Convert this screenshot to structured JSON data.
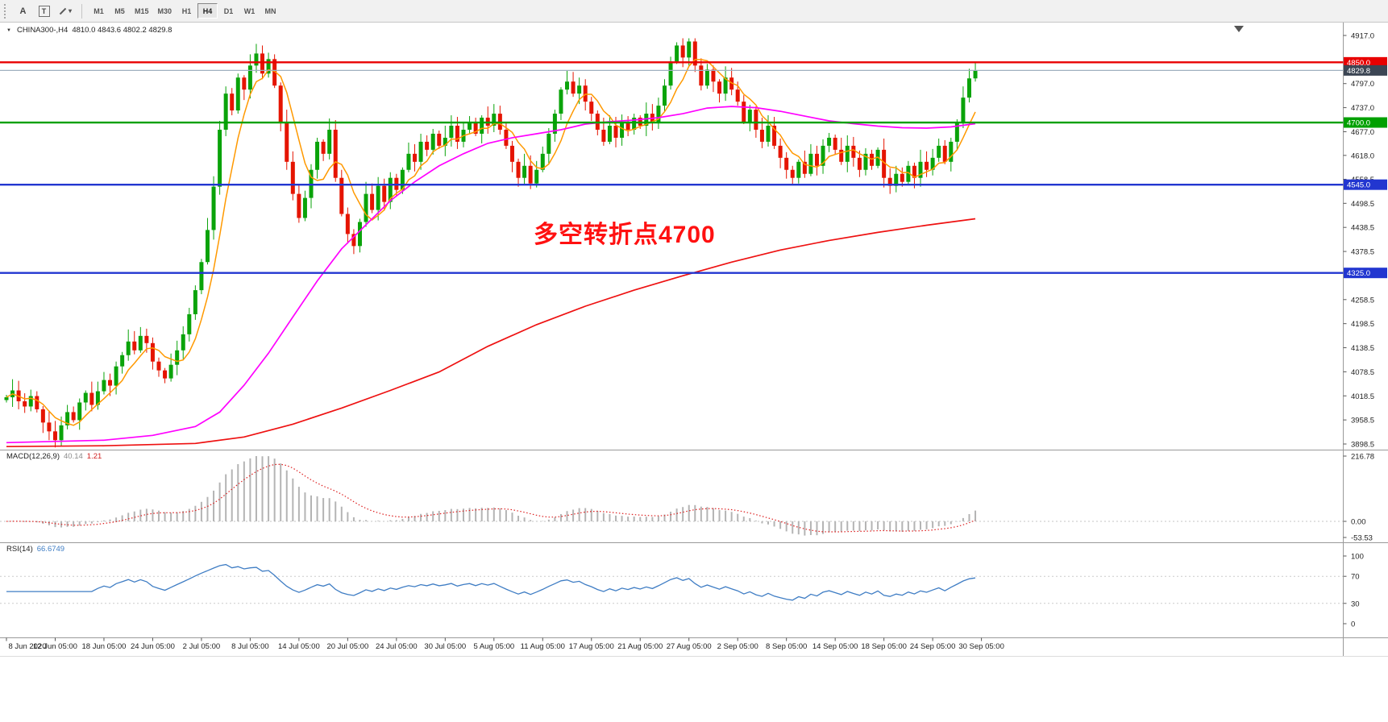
{
  "toolbar": {
    "tools": [
      {
        "name": "cursor-tool",
        "label": "A"
      },
      {
        "name": "text-tool",
        "label": "T"
      },
      {
        "name": "shapes-dropdown",
        "label": "▾"
      }
    ],
    "timeframes": [
      "M1",
      "M5",
      "M15",
      "M30",
      "H1",
      "H4",
      "D1",
      "W1",
      "MN"
    ],
    "active_timeframe": "H4"
  },
  "header": {
    "symbol": "CHINA300-,H4",
    "ohlc": "4810.0 4843.6 4802.2 4829.8"
  },
  "chart_data": {
    "type": "candlestick",
    "title": "CHINA300-,H4",
    "timeframe": "H4",
    "last_bar": {
      "open": 4810.0,
      "high": 4843.6,
      "low": 4802.2,
      "close": 4829.8
    },
    "x_labels": [
      "8 Jun 2020",
      "12 Jun 05:00",
      "18 Jun 05:00",
      "24 Jun 05:00",
      "2 Jul 05:00",
      "8 Jul 05:00",
      "14 Jul 05:00",
      "20 Jul 05:00",
      "24 Jul 05:00",
      "30 Jul 05:00",
      "5 Aug 05:00",
      "11 Aug 05:00",
      "17 Aug 05:00",
      "21 Aug 05:00",
      "27 Aug 05:00",
      "2 Sep 05:00",
      "8 Sep 05:00",
      "14 Sep 05:00",
      "18 Sep 05:00",
      "24 Sep 05:00",
      "30 Sep 05:00"
    ],
    "price_axis": {
      "ticks": [
        "4917.0",
        "4797.0",
        "4737.0",
        "4677.0",
        "4618.0",
        "4558.5",
        "4498.5",
        "4438.5",
        "4378.5",
        "4258.5",
        "4198.5",
        "4138.5",
        "4078.5",
        "4018.5",
        "3958.5",
        "3898.5"
      ],
      "max": 4917.0,
      "min": 3898.5
    },
    "levels": [
      {
        "label": "4850.0",
        "value": 4850.0,
        "style": "hline",
        "color": "#e80000",
        "badge": "#e80000"
      },
      {
        "label": "4829.8",
        "value": 4829.8,
        "style": "bid",
        "color": "#9fb0bf",
        "badge": "#3c4654"
      },
      {
        "label": "4700.0",
        "value": 4700.0,
        "style": "hline",
        "color": "#00a000",
        "badge": "#00a000"
      },
      {
        "label": "4545.0",
        "value": 4545.0,
        "style": "hline",
        "color": "#2236d0",
        "badge": "#2236d0"
      },
      {
        "label": "4325.0",
        "value": 4325.0,
        "style": "hline",
        "color": "#2236d0",
        "badge": "#2236d0"
      }
    ],
    "annotation": {
      "text": "多空转折点4700",
      "color": "#ff1111"
    },
    "candles": {
      "up_color": "#0aa30a",
      "down_color": "#e51400",
      "first_open": 4008,
      "closes": [
        4015,
        4032,
        4005,
        3992,
        4018,
        3985,
        3952,
        3930,
        3908,
        3945,
        3978,
        3958,
        4002,
        4026,
        3996,
        4030,
        4058,
        4044,
        4092,
        4120,
        4154,
        4132,
        4168,
        4150,
        4104,
        4082,
        4062,
        4096,
        4132,
        4172,
        4222,
        4282,
        4352,
        4432,
        4540,
        4682,
        4772,
        4730,
        4812,
        4782,
        4842,
        4872,
        4822,
        4858,
        4792,
        4702,
        4602,
        4522,
        4462,
        4512,
        4582,
        4652,
        4622,
        4682,
        4562,
        4472,
        4422,
        4392,
        4452,
        4522,
        4482,
        4542,
        4502,
        4562,
        4532,
        4582,
        4622,
        4602,
        4652,
        4632,
        4672,
        4642,
        4662,
        4692,
        4652,
        4682,
        4702,
        4672,
        4712,
        4692,
        4722,
        4682,
        4642,
        4602,
        4562,
        4592,
        4548,
        4582,
        4622,
        4672,
        4722,
        4782,
        4802,
        4772,
        4792,
        4752,
        4722,
        4682,
        4652,
        4692,
        4662,
        4702,
        4682,
        4712,
        4692,
        4722,
        4702,
        4742,
        4792,
        4852,
        4892,
        4862,
        4902,
        4842,
        4792,
        4832,
        4802,
        4772,
        4812,
        4782,
        4752,
        4702,
        4732,
        4682,
        4652,
        4692,
        4642,
        4612,
        4582,
        4562,
        4602,
        4572,
        4622,
        4592,
        4642,
        4662,
        4632,
        4602,
        4642,
        4612,
        4582,
        4622,
        4592,
        4632,
        4562,
        4542,
        4572,
        4552,
        4592,
        4562,
        4602,
        4582,
        4612,
        4642,
        4602,
        4652,
        4702,
        4762,
        4810,
        4829.8
      ]
    },
    "moving_averages": [
      {
        "name": "ma-fast",
        "color": "#ff9900",
        "period": 6,
        "source": "computed"
      },
      {
        "name": "ma-medium",
        "color": "#ff00ff",
        "anchors": [
          [
            0,
            3902
          ],
          [
            16,
            3908
          ],
          [
            24,
            3920
          ],
          [
            31,
            3942
          ],
          [
            35,
            3978
          ],
          [
            39,
            4045
          ],
          [
            43,
            4125
          ],
          [
            47,
            4215
          ],
          [
            51,
            4305
          ],
          [
            55,
            4385
          ],
          [
            59,
            4445
          ],
          [
            63,
            4505
          ],
          [
            67,
            4552
          ],
          [
            71,
            4592
          ],
          [
            75,
            4622
          ],
          [
            79,
            4648
          ],
          [
            83,
            4662
          ],
          [
            87,
            4672
          ],
          [
            91,
            4682
          ],
          [
            95,
            4696
          ],
          [
            99,
            4702
          ],
          [
            103,
            4706
          ],
          [
            107,
            4712
          ],
          [
            111,
            4722
          ],
          [
            115,
            4736
          ],
          [
            119,
            4740
          ],
          [
            123,
            4737
          ],
          [
            127,
            4728
          ],
          [
            131,
            4716
          ],
          [
            135,
            4704
          ],
          [
            139,
            4697
          ],
          [
            143,
            4691
          ],
          [
            147,
            4687
          ],
          [
            151,
            4686
          ],
          [
            155,
            4689
          ],
          [
            159,
            4697
          ]
        ]
      },
      {
        "name": "ma-slow",
        "color": "#ee1111",
        "anchors": [
          [
            0,
            3892
          ],
          [
            16,
            3894
          ],
          [
            31,
            3900
          ],
          [
            39,
            3916
          ],
          [
            47,
            3948
          ],
          [
            55,
            3988
          ],
          [
            63,
            4032
          ],
          [
            71,
            4078
          ],
          [
            79,
            4142
          ],
          [
            87,
            4196
          ],
          [
            95,
            4242
          ],
          [
            103,
            4282
          ],
          [
            111,
            4318
          ],
          [
            119,
            4352
          ],
          [
            127,
            4382
          ],
          [
            135,
            4406
          ],
          [
            143,
            4426
          ],
          [
            151,
            4444
          ],
          [
            159,
            4460
          ]
        ]
      }
    ],
    "macd": {
      "label": "MACD(12,26,9)",
      "value": "40.14",
      "signal_value": "1.21",
      "params": [
        12,
        26,
        9
      ],
      "axis": [
        "216.78",
        "0.00",
        "-53.53"
      ],
      "hist_color": "#b4b4b4",
      "signal_color": "#dd2020"
    },
    "rsi": {
      "label": "RSI(14)",
      "value": "66.6749",
      "period": 14,
      "axis": [
        "100",
        "70",
        "30",
        "0"
      ],
      "levels": [
        70,
        30
      ],
      "color": "#3f7dc4"
    }
  }
}
